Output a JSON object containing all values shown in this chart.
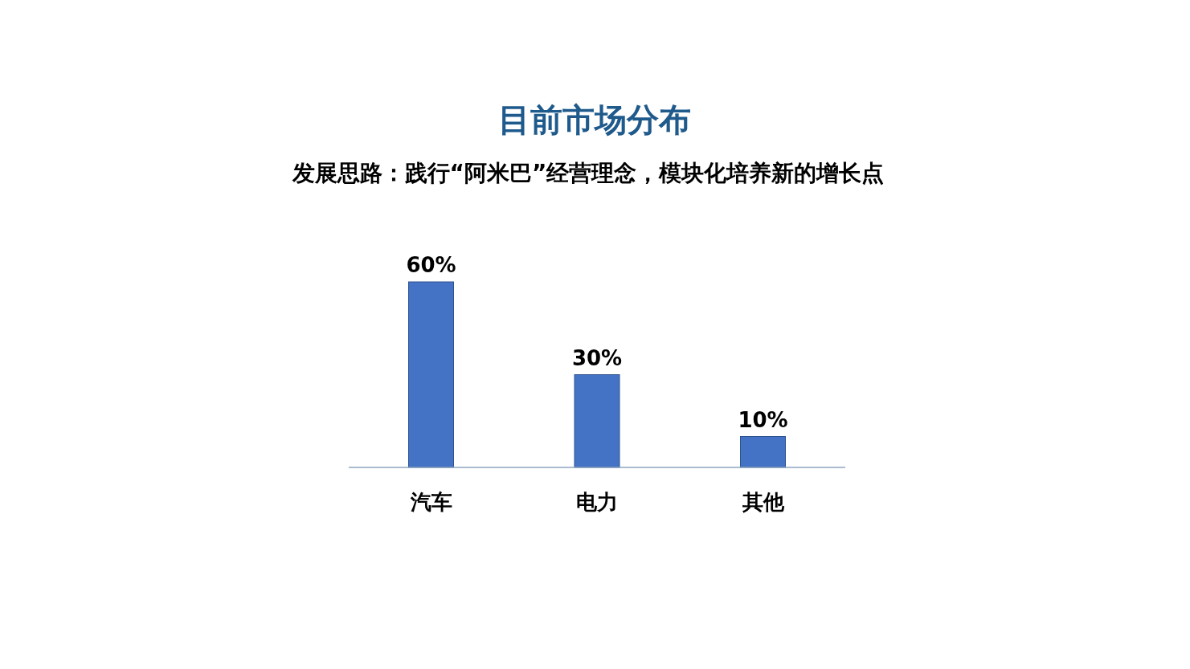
{
  "chart_data": {
    "type": "bar",
    "title": "目前市场分布",
    "subtitle": "发展思路：践行“阿米巴”经营理念，模块化培养新的增长点",
    "categories": [
      "汽车",
      "电力",
      "其他"
    ],
    "values": [
      60,
      30,
      10
    ],
    "value_labels": [
      "60%",
      "30%",
      "10%"
    ],
    "color": "#4472c4"
  }
}
